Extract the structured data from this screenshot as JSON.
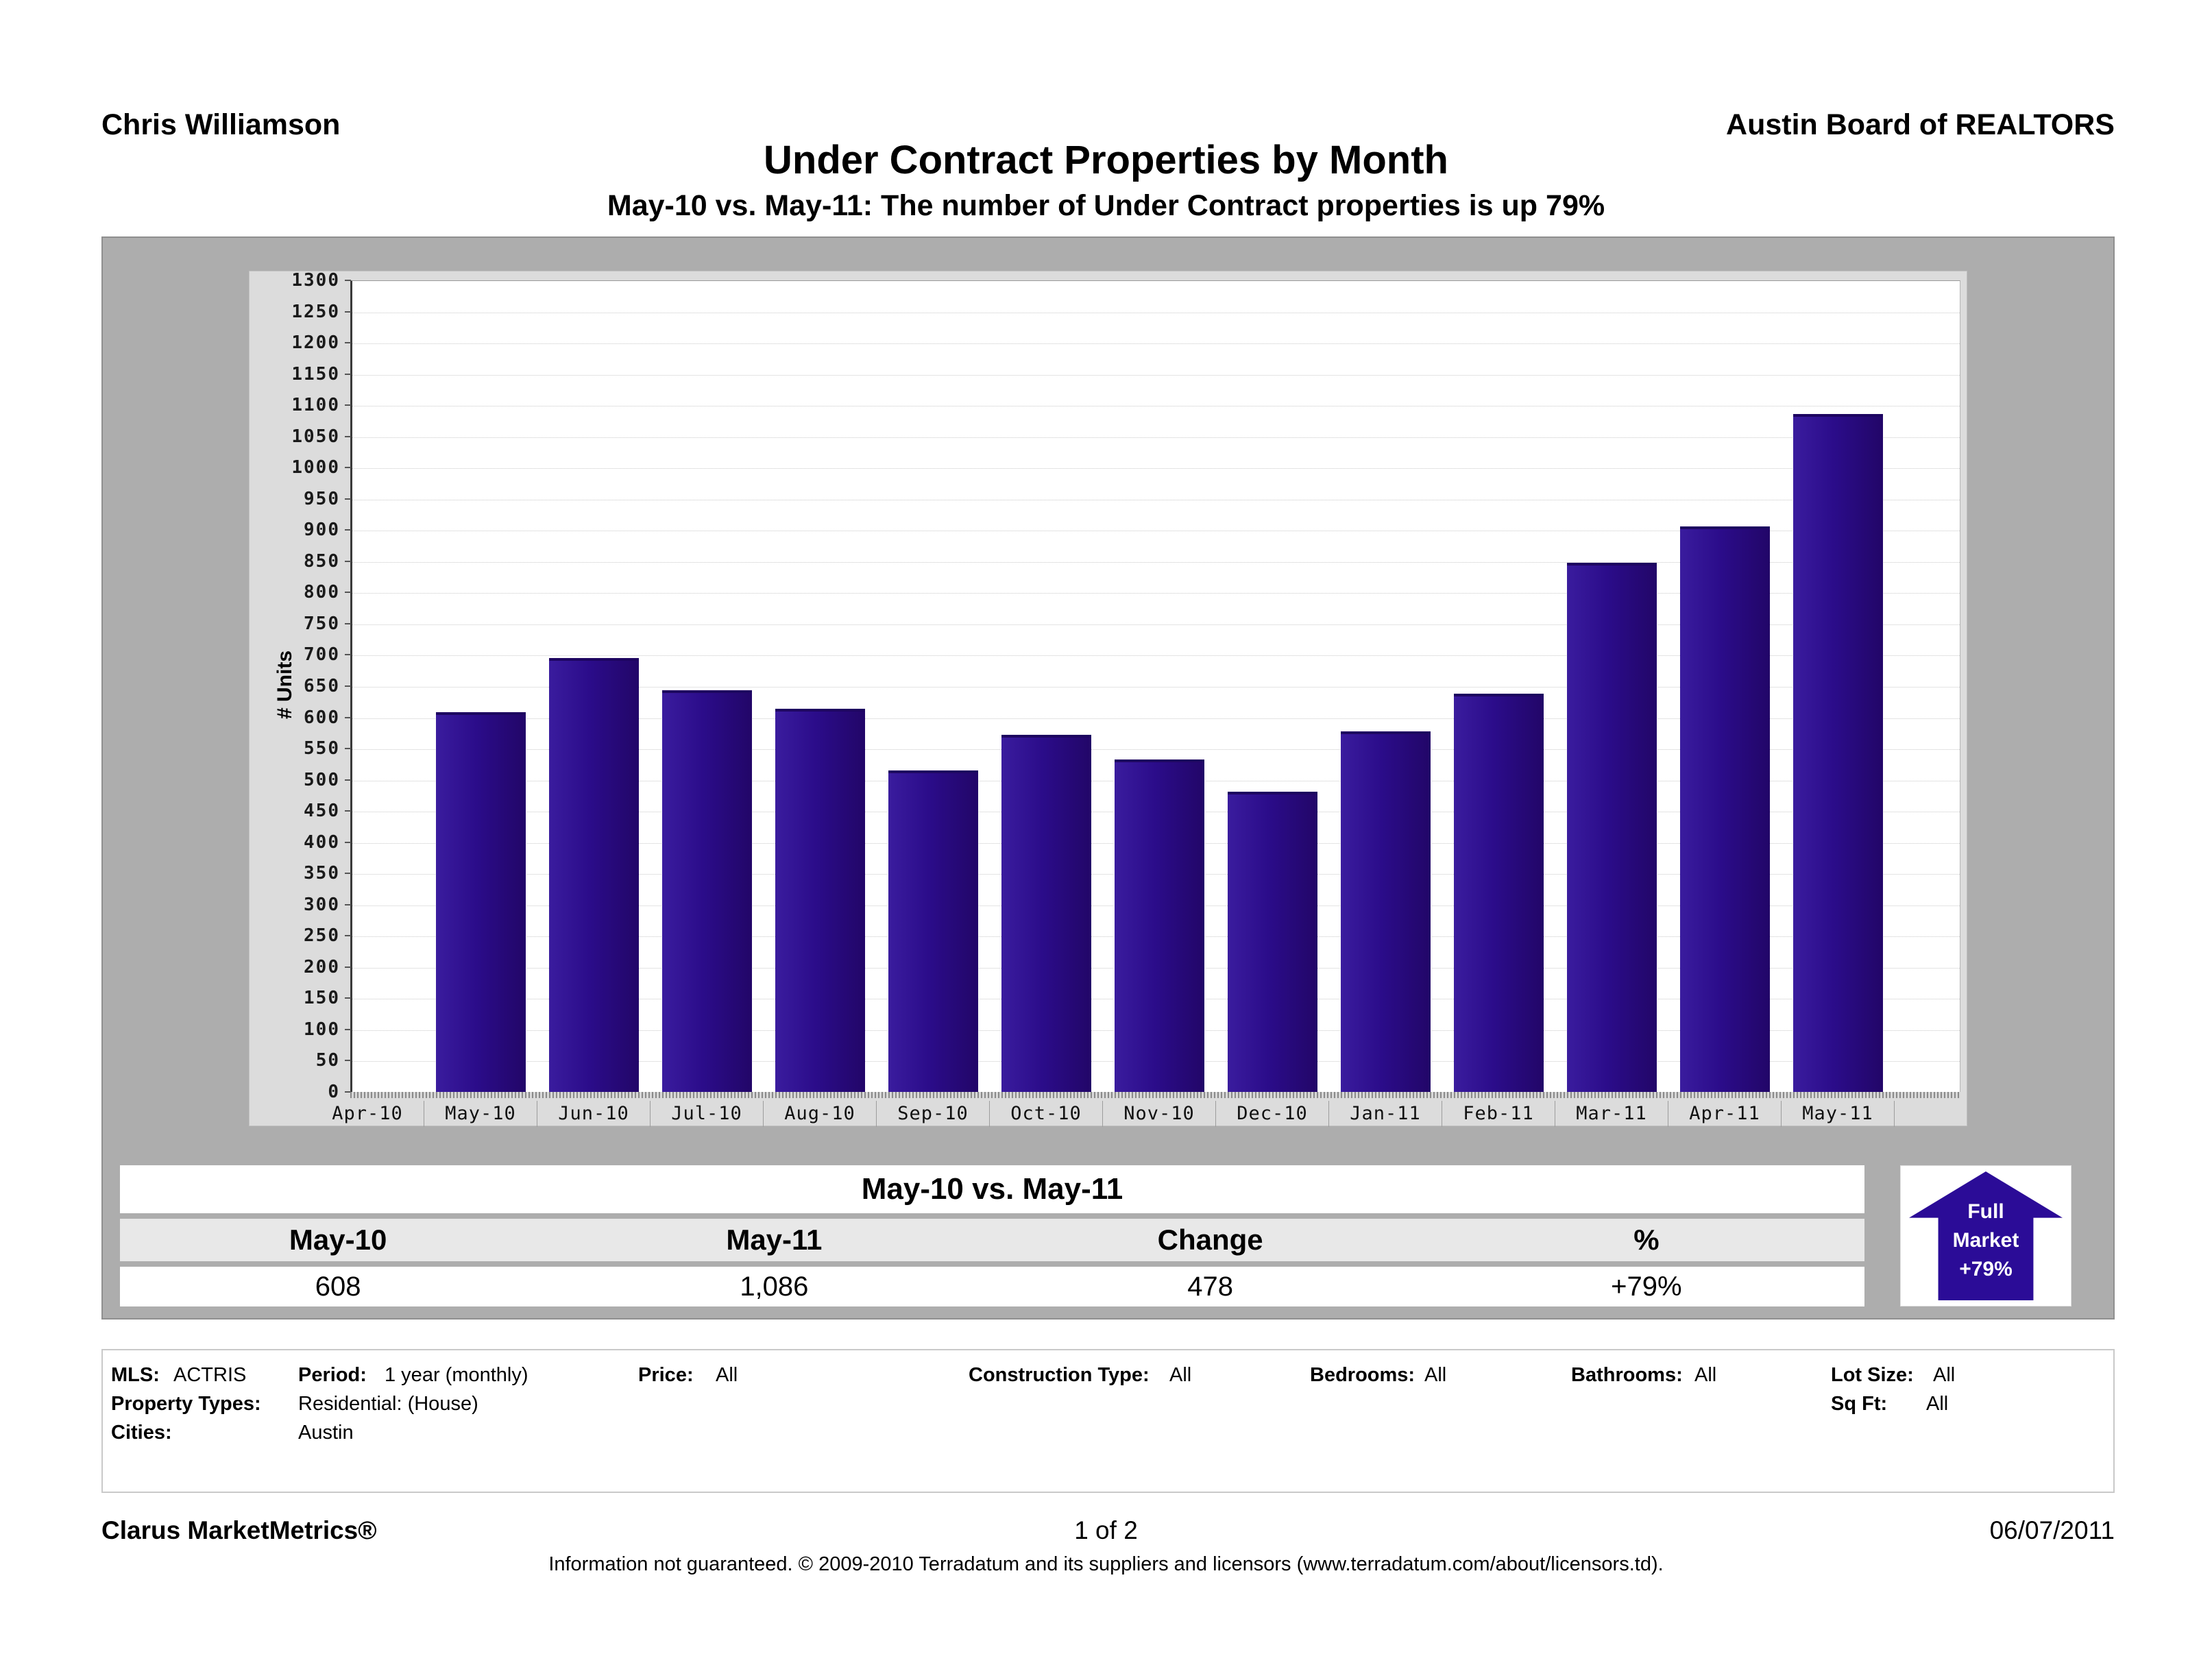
{
  "header": {
    "agent": "Chris Williamson",
    "organization": "Austin Board of REALTORS"
  },
  "title": "Under Contract Properties by Month",
  "subtitle": "May-10 vs. May-11: The number of Under Contract properties is up 79%",
  "chart_data": {
    "type": "bar",
    "title": "Under Contract Properties by Month",
    "xlabel": "",
    "ylabel": "# Units",
    "categories": [
      "Apr-10",
      "May-10",
      "Jun-10",
      "Jul-10",
      "Aug-10",
      "Sep-10",
      "Oct-10",
      "Nov-10",
      "Dec-10",
      "Jan-11",
      "Feb-11",
      "Mar-11",
      "Apr-11",
      "May-11"
    ],
    "values": [
      null,
      608,
      695,
      643,
      614,
      515,
      572,
      533,
      481,
      578,
      638,
      848,
      906,
      1086
    ],
    "ylim": [
      0,
      1300
    ],
    "ytick_step": 50,
    "grid": "horizontal-dotted",
    "legend": "none",
    "bar_color": "#2b0c8a",
    "plot_background": "#ffffff"
  },
  "summary_table": {
    "title": "May-10 vs. May-11",
    "columns": [
      "May-10",
      "May-11",
      "Change",
      "%"
    ],
    "values": [
      "608",
      "1,086",
      "478",
      "+79%"
    ]
  },
  "badge": {
    "lines": [
      "Full",
      "Market",
      "+79%"
    ],
    "color": "#2b0c97"
  },
  "filters": {
    "mls": {
      "label": "MLS:",
      "value": "ACTRIS"
    },
    "period": {
      "label": "Period:",
      "value": "1 year (monthly)"
    },
    "price": {
      "label": "Price:",
      "value": "All"
    },
    "construction_type": {
      "label": "Construction Type:",
      "value": "All"
    },
    "bedrooms": {
      "label": "Bedrooms:",
      "value": "All"
    },
    "bathrooms": {
      "label": "Bathrooms:",
      "value": "All"
    },
    "lot_size": {
      "label": "Lot Size:",
      "value": "All"
    },
    "property_types": {
      "label": "Property Types:",
      "value": "Residential: (House)"
    },
    "sq_ft": {
      "label": "Sq Ft:",
      "value": "All"
    },
    "cities": {
      "label": "Cities:",
      "value": "Austin"
    }
  },
  "footer": {
    "brand": "Clarus MarketMetrics®",
    "page": "1 of 2",
    "date": "06/07/2011",
    "disclaimer": "Information not guaranteed.  © 2009-2010 Terradatum and its suppliers and licensors (www.terradatum.com/about/licensors.td)."
  }
}
